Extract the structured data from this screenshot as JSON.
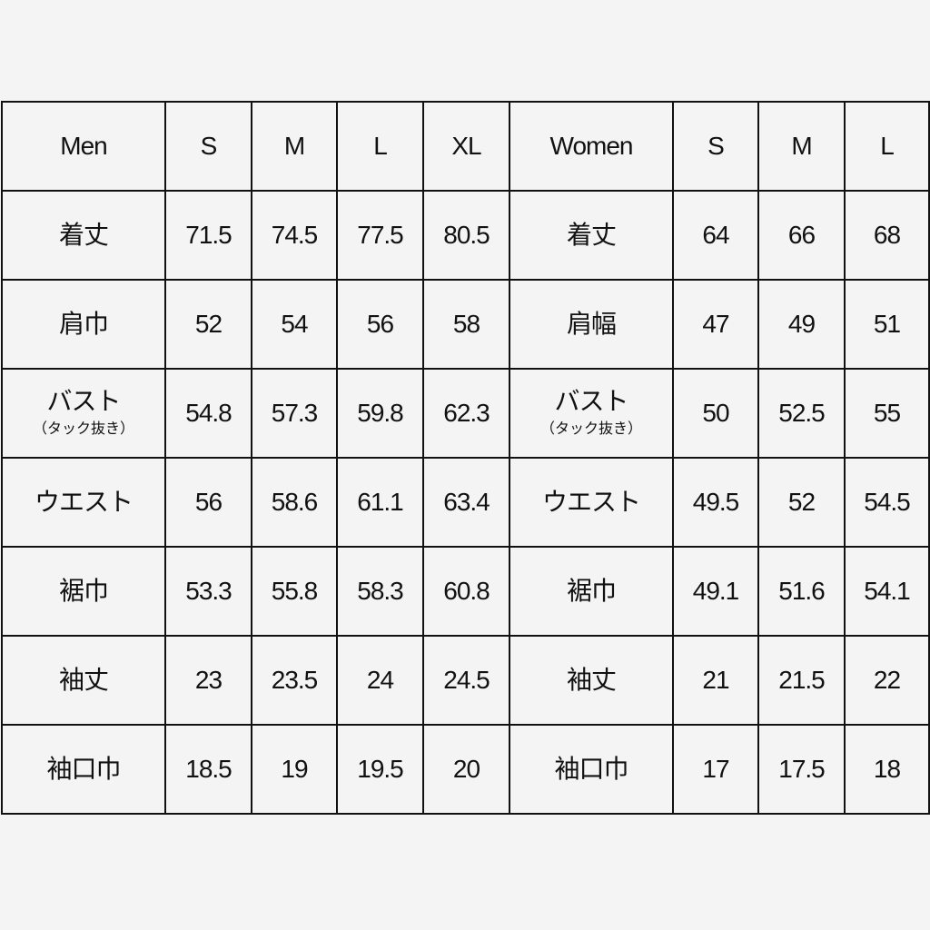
{
  "table": {
    "header": [
      "Men",
      "S",
      "M",
      "L",
      "XL",
      "Women",
      "S",
      "M",
      "L"
    ],
    "rows": [
      {
        "men_label": "着丈",
        "men_sub": "",
        "men": [
          "71.5",
          "74.5",
          "77.5",
          "80.5"
        ],
        "women_label": "着丈",
        "women_sub": "",
        "women": [
          "64",
          "66",
          "68"
        ]
      },
      {
        "men_label": "肩巾",
        "men_sub": "",
        "men": [
          "52",
          "54",
          "56",
          "58"
        ],
        "women_label": "肩幅",
        "women_sub": "",
        "women": [
          "47",
          "49",
          "51"
        ]
      },
      {
        "men_label": "バスト",
        "men_sub": "（タック抜き）",
        "men": [
          "54.8",
          "57.3",
          "59.8",
          "62.3"
        ],
        "women_label": "バスト",
        "women_sub": "（タック抜き）",
        "women": [
          "50",
          "52.5",
          "55"
        ]
      },
      {
        "men_label": "ウエスト",
        "men_sub": "",
        "men": [
          "56",
          "58.6",
          "61.1",
          "63.4"
        ],
        "women_label": "ウエスト",
        "women_sub": "",
        "women": [
          "49.5",
          "52",
          "54.5"
        ]
      },
      {
        "men_label": "裾巾",
        "men_sub": "",
        "men": [
          "53.3",
          "55.8",
          "58.3",
          "60.8"
        ],
        "women_label": "裾巾",
        "women_sub": "",
        "women": [
          "49.1",
          "51.6",
          "54.1"
        ]
      },
      {
        "men_label": "袖丈",
        "men_sub": "",
        "men": [
          "23",
          "23.5",
          "24",
          "24.5"
        ],
        "women_label": "袖丈",
        "women_sub": "",
        "women": [
          "21",
          "21.5",
          "22"
        ]
      },
      {
        "men_label": "袖口巾",
        "men_sub": "",
        "men": [
          "18.5",
          "19",
          "19.5",
          "20"
        ],
        "women_label": "袖口巾",
        "women_sub": "",
        "women": [
          "17",
          "17.5",
          "18"
        ]
      }
    ]
  }
}
